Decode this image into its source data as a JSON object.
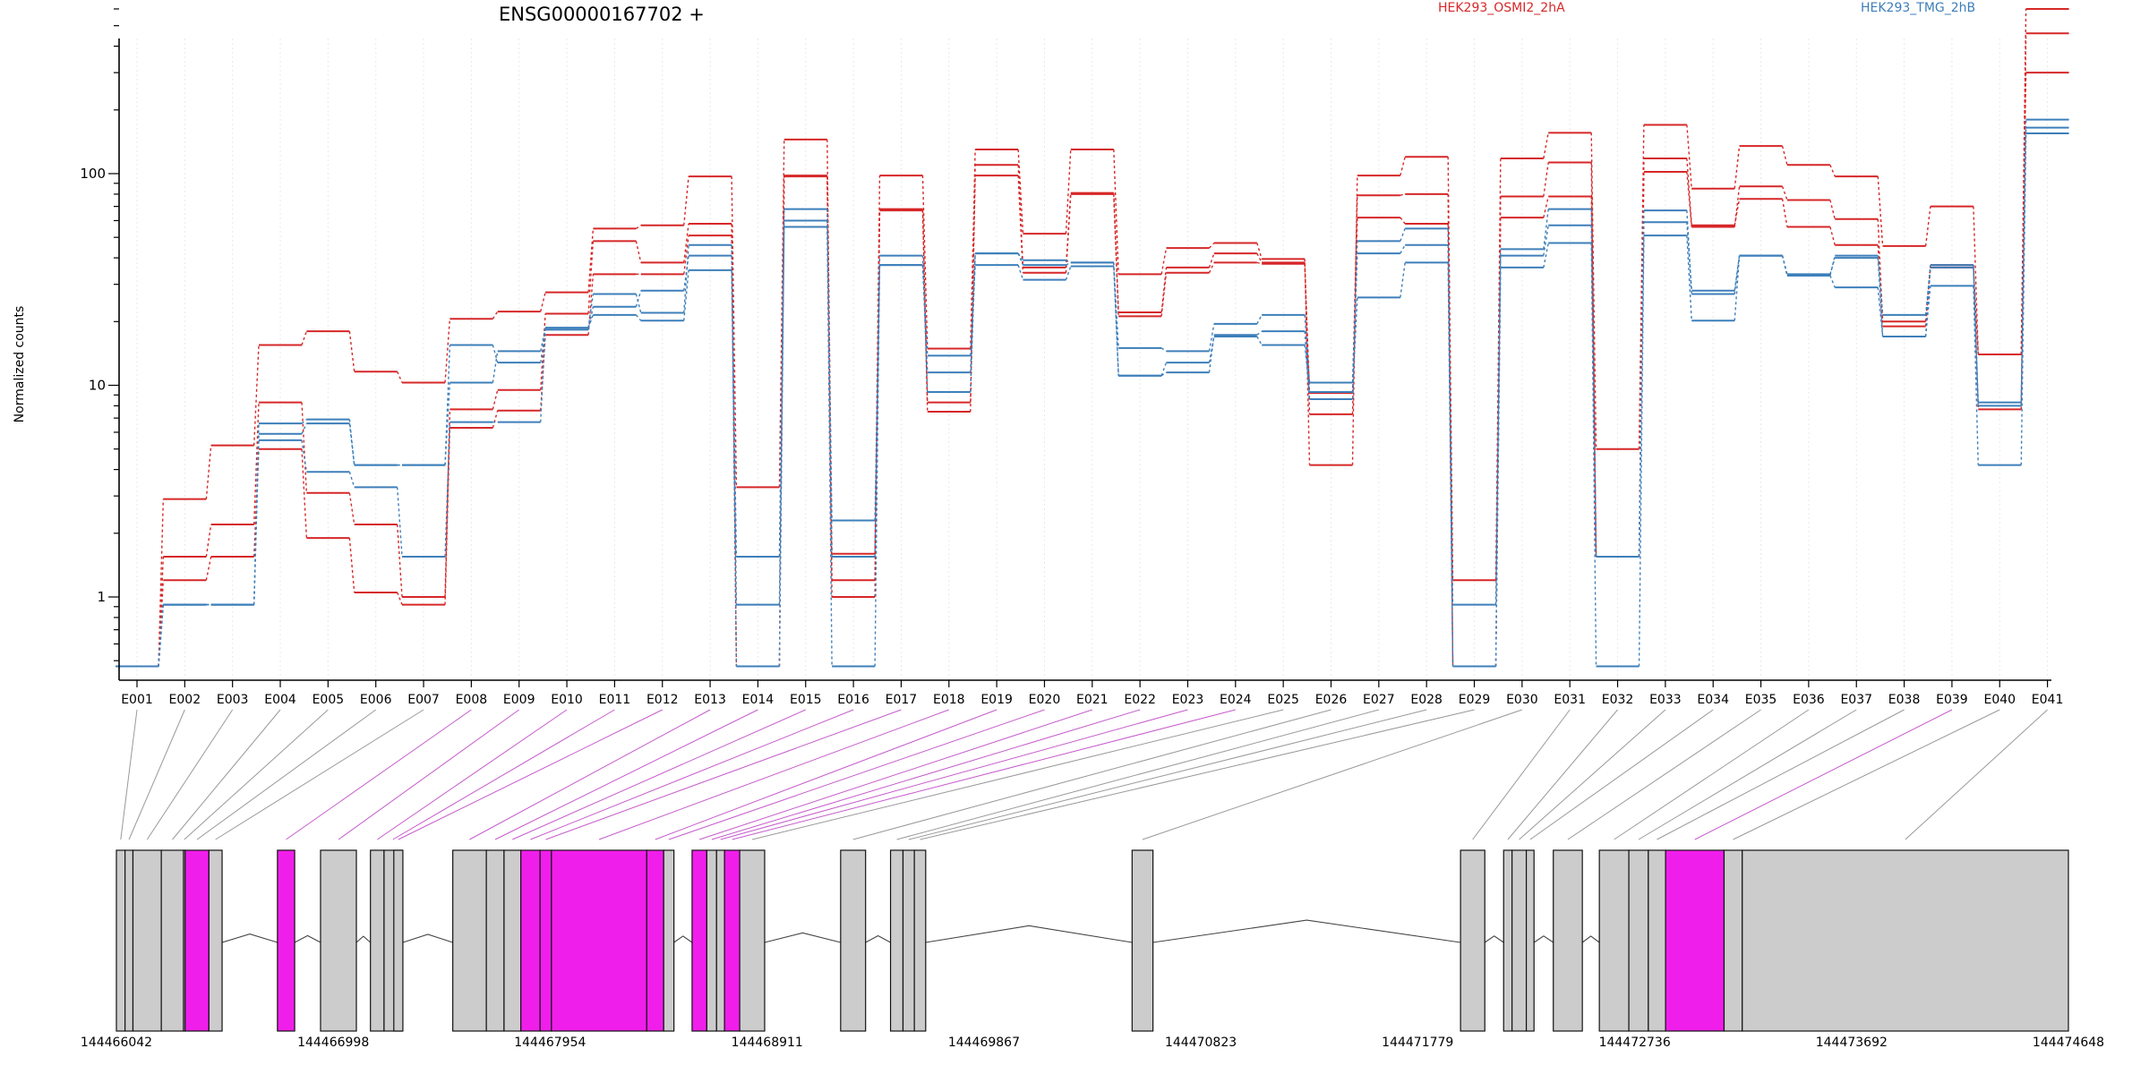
{
  "chart_data": {
    "type": "line",
    "title": "ENSG00000167702 +",
    "ylabel": "Normalized counts",
    "xlabel": "",
    "yscale": "log",
    "ylim": [
      0.45,
      800
    ],
    "yticks": [
      1,
      10,
      100
    ],
    "legend": {
      "placement": "top"
    },
    "categories": [
      "E001",
      "E002",
      "E003",
      "E004",
      "E005",
      "E006",
      "E007",
      "E008",
      "E009",
      "E010",
      "E011",
      "E012",
      "E013",
      "E014",
      "E015",
      "E016",
      "E017",
      "E018",
      "E019",
      "E020",
      "E021",
      "E022",
      "E023",
      "E024",
      "E025",
      "E026",
      "E027",
      "E028",
      "E029",
      "E030",
      "E031",
      "E032",
      "E033",
      "E034",
      "E035",
      "E036",
      "E037",
      "E038",
      "E039",
      "E040",
      "E041"
    ],
    "groups": [
      {
        "label": "HEK293_OSMI2_2hA",
        "color": "#d62728"
      },
      {
        "label": "HEK293_TMG_2hB",
        "color": "#3d7fba"
      }
    ],
    "series": [
      {
        "group": 0,
        "values": [
          0.47,
          2.9,
          5.2,
          15.5,
          18,
          11.6,
          10.3,
          20.6,
          22.3,
          27.5,
          55,
          57,
          97,
          3.3,
          145,
          1.6,
          98,
          14.9,
          130,
          52,
          130,
          33.5,
          44.5,
          47,
          39.5,
          4.2,
          98,
          120,
          1.2,
          118,
          156,
          5,
          170,
          85,
          135,
          110,
          97,
          45.5,
          70,
          14,
          600
        ]
      },
      {
        "group": 0,
        "values": [
          0.47,
          1.55,
          2.2,
          8.3,
          3.1,
          2.2,
          1.0,
          7.7,
          9.5,
          21.8,
          48,
          38,
          58,
          0.47,
          98,
          1.2,
          67,
          8.3,
          110,
          36,
          81,
          22.1,
          36,
          42,
          38,
          7.3,
          62,
          58,
          0.47,
          62,
          78,
          1.55,
          102,
          56,
          87,
          75,
          61,
          20,
          37,
          7.7,
          460
        ]
      },
      {
        "group": 0,
        "values": [
          0.47,
          1.2,
          1.55,
          5.0,
          1.9,
          1.05,
          0.92,
          6.3,
          7.6,
          17.3,
          33.5,
          33.5,
          51,
          0.47,
          97,
          1.0,
          68,
          7.5,
          98,
          34,
          80,
          21.2,
          34,
          38,
          37.5,
          9.2,
          79,
          80,
          0.47,
          78,
          113,
          1.55,
          118,
          57,
          76,
          56,
          46,
          19,
          36,
          14,
          300
        ]
      },
      {
        "group": 1,
        "values": [
          0.47,
          0.92,
          0.92,
          6.6,
          6.9,
          4.2,
          4.2,
          15.5,
          12.8,
          18.3,
          23.5,
          28,
          41,
          1.55,
          68,
          2.3,
          37,
          11.5,
          42,
          39,
          38,
          15,
          14.5,
          19.5,
          21.5,
          10.3,
          48,
          55,
          0.92,
          44,
          68,
          1.55,
          67,
          27,
          41,
          33,
          41,
          21.5,
          37,
          8.3,
          180
        ]
      },
      {
        "group": 1,
        "values": [
          0.47,
          0.92,
          0.92,
          5.9,
          6.6,
          4.2,
          4.2,
          10.3,
          14.5,
          18.7,
          27,
          22,
          46,
          0.47,
          60,
          1.55,
          41,
          9.3,
          42,
          37,
          38,
          11.1,
          11.5,
          17.3,
          18,
          8.6,
          42,
          46,
          0.47,
          41,
          57,
          1.55,
          59,
          28,
          41,
          33.5,
          40,
          17,
          36,
          8.0,
          165
        ]
      },
      {
        "group": 1,
        "values": [
          0.47,
          0.92,
          0.92,
          5.5,
          3.9,
          3.3,
          1.55,
          6.7,
          6.7,
          18.7,
          21.5,
          20.2,
          35,
          0.92,
          56,
          0.47,
          37,
          13.8,
          37,
          31.5,
          36.5,
          11.1,
          12.8,
          17,
          15.5,
          9.3,
          26,
          38,
          0.47,
          36,
          47,
          0.47,
          51,
          20.2,
          41,
          33,
          29,
          17,
          29.5,
          4.2,
          155
        ]
      }
    ],
    "exon_labels_mark": [
      false,
      false,
      false,
      false,
      false,
      false,
      false,
      true,
      true,
      true,
      true,
      true,
      true,
      true,
      true,
      true,
      true,
      true,
      true,
      true,
      true,
      true,
      true,
      true,
      false,
      false,
      false,
      false,
      false,
      false,
      false,
      false,
      false,
      false,
      false,
      false,
      false,
      false,
      true,
      false,
      false
    ],
    "gene_model": {
      "start": 144466042,
      "end": 144474648,
      "ticks": [
        144466042,
        144466998,
        144467954,
        144468911,
        144469867,
        144470823,
        144471779,
        144472736,
        144473692,
        144474648
      ],
      "exons": [
        {
          "start": 144466042,
          "end": 144466080,
          "type": "utr"
        },
        {
          "start": 144466080,
          "end": 144466115,
          "type": "utr"
        },
        {
          "start": 144466115,
          "end": 144466240,
          "type": "utr"
        },
        {
          "start": 144466240,
          "end": 144466338,
          "type": "utr"
        },
        {
          "start": 144466338,
          "end": 144466345,
          "type": "utr"
        },
        {
          "start": 144466345,
          "end": 144466450,
          "type": "coding"
        },
        {
          "start": 144466450,
          "end": 144466508,
          "type": "utr"
        },
        {
          "start": 144466752,
          "end": 144466828,
          "type": "coding"
        },
        {
          "start": 144466942,
          "end": 144467100,
          "type": "utr"
        },
        {
          "start": 144467162,
          "end": 144467222,
          "type": "utr"
        },
        {
          "start": 144467222,
          "end": 144467300,
          "type": "utr"
        },
        {
          "start": 144467265,
          "end": 144467305,
          "type": "utr"
        },
        {
          "start": 144467525,
          "end": 144467673,
          "type": "utr"
        },
        {
          "start": 144467673,
          "end": 144467751,
          "type": "utr"
        },
        {
          "start": 144467751,
          "end": 144467825,
          "type": "utr"
        },
        {
          "start": 144467825,
          "end": 144467910,
          "type": "coding"
        },
        {
          "start": 144467910,
          "end": 144467960,
          "type": "coding"
        },
        {
          "start": 144467960,
          "end": 144468380,
          "type": "coding"
        },
        {
          "start": 144468380,
          "end": 144468455,
          "type": "coding"
        },
        {
          "start": 144468455,
          "end": 144468500,
          "type": "utr"
        },
        {
          "start": 144468580,
          "end": 144468645,
          "type": "coding"
        },
        {
          "start": 144468645,
          "end": 144468688,
          "type": "utr"
        },
        {
          "start": 144468688,
          "end": 144468723,
          "type": "utr"
        },
        {
          "start": 144468723,
          "end": 144468790,
          "type": "coding"
        },
        {
          "start": 144468790,
          "end": 144468900,
          "type": "utr"
        },
        {
          "start": 144469235,
          "end": 144469345,
          "type": "utr"
        },
        {
          "start": 144469455,
          "end": 144469510,
          "type": "utr"
        },
        {
          "start": 144469510,
          "end": 144469560,
          "type": "utr"
        },
        {
          "start": 144469560,
          "end": 144469610,
          "type": "utr"
        },
        {
          "start": 144470520,
          "end": 144470612,
          "type": "utr"
        },
        {
          "start": 144471968,
          "end": 144472075,
          "type": "utr"
        },
        {
          "start": 144472158,
          "end": 144472195,
          "type": "utr"
        },
        {
          "start": 144472195,
          "end": 144472258,
          "type": "utr"
        },
        {
          "start": 144472258,
          "end": 144472292,
          "type": "utr"
        },
        {
          "start": 144472377,
          "end": 144472505,
          "type": "utr"
        },
        {
          "start": 144472580,
          "end": 144472710,
          "type": "utr"
        },
        {
          "start": 144472710,
          "end": 144472796,
          "type": "utr"
        },
        {
          "start": 144472796,
          "end": 144472872,
          "type": "utr"
        },
        {
          "start": 144472872,
          "end": 144473130,
          "type": "coding"
        },
        {
          "start": 144473130,
          "end": 144473210,
          "type": "utr"
        },
        {
          "start": 144473210,
          "end": 144474648,
          "type": "utr"
        }
      ],
      "colors": {
        "utr": "#cccccc",
        "coding": "#f01eeb",
        "intron": "#444444"
      }
    }
  }
}
